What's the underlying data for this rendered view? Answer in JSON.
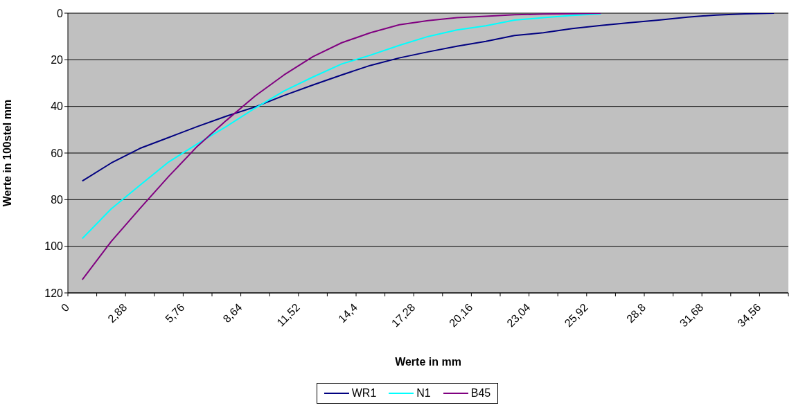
{
  "chart_data": {
    "type": "line",
    "xlabel": "Werte in mm",
    "ylabel": "Werte in 100stel mm",
    "x": [
      0.72,
      2.16,
      3.6,
      5.04,
      6.48,
      7.92,
      9.36,
      10.8,
      12.24,
      13.68,
      15.12,
      16.56,
      18,
      19.44,
      20.88,
      22.32,
      23.76,
      25.2,
      26.64,
      28.08,
      29.52,
      30.96,
      32.4,
      33.84,
      35.28
    ],
    "series": [
      {
        "name": "WR1",
        "color": "#000080",
        "values": [
          72,
          64.3,
          58,
          53.3,
          48.6,
          44.2,
          40.2,
          35.3,
          30.8,
          26.5,
          22.4,
          19.2,
          16.6,
          14.2,
          12.1,
          9.6,
          8.4,
          6.6,
          5.3,
          4.1,
          3,
          1.7,
          0.8,
          0.3,
          0
        ]
      },
      {
        "name": "N1",
        "color": "#00ffff",
        "values": [
          96.7,
          84,
          73.8,
          63.8,
          56,
          48.6,
          40.7,
          33.4,
          27.4,
          21.8,
          18,
          13.8,
          10,
          7.2,
          5.4,
          3,
          1.9,
          1,
          0.3,
          null,
          null,
          null,
          null,
          null,
          null
        ]
      },
      {
        "name": "B45",
        "color": "#800080",
        "values": [
          114.3,
          98,
          83.8,
          70,
          57,
          46,
          35.5,
          26.5,
          18.7,
          12.7,
          8.4,
          5,
          3.2,
          1.9,
          1.3,
          0.7,
          0.4,
          0.2,
          0,
          null,
          null,
          null,
          null,
          null,
          null
        ]
      }
    ],
    "xlim": [
      0,
      36
    ],
    "xticks": [
      0,
      {
        "value": 1.44,
        "label": null
      },
      {
        "value": 2.88,
        "label": "2,88"
      },
      {
        "value": 4.32,
        "label": null
      },
      {
        "value": 5.76,
        "label": "5,76"
      },
      {
        "value": 7.2,
        "label": null
      },
      {
        "value": 8.64,
        "label": "8,64"
      },
      {
        "value": 10.08,
        "label": null
      },
      {
        "value": 11.52,
        "label": "11,52"
      },
      {
        "value": 12.96,
        "label": null
      },
      {
        "value": 14.4,
        "label": "14,4"
      },
      {
        "value": 15.84,
        "label": null
      },
      {
        "value": 17.28,
        "label": "17,28"
      },
      {
        "value": 18.72,
        "label": null
      },
      {
        "value": 20.16,
        "label": "20,16"
      },
      {
        "value": 21.6,
        "label": null
      },
      {
        "value": 23.04,
        "label": "23,04"
      },
      {
        "value": 24.48,
        "label": null
      },
      {
        "value": 25.92,
        "label": "25,92"
      },
      {
        "value": 27.36,
        "label": null
      },
      {
        "value": 28.8,
        "label": "28,8"
      },
      {
        "value": 30.24,
        "label": null
      },
      {
        "value": 31.68,
        "label": "31,68"
      },
      {
        "value": 33.12,
        "label": null
      },
      {
        "value": 34.56,
        "label": "34,56"
      },
      {
        "value": 36,
        "label": null
      }
    ],
    "ylim": [
      120,
      0
    ],
    "yticks": [
      0,
      20,
      40,
      60,
      80,
      100,
      120
    ],
    "grid": "y",
    "legend": "bottom",
    "marker": "none",
    "line_style": "solid"
  }
}
